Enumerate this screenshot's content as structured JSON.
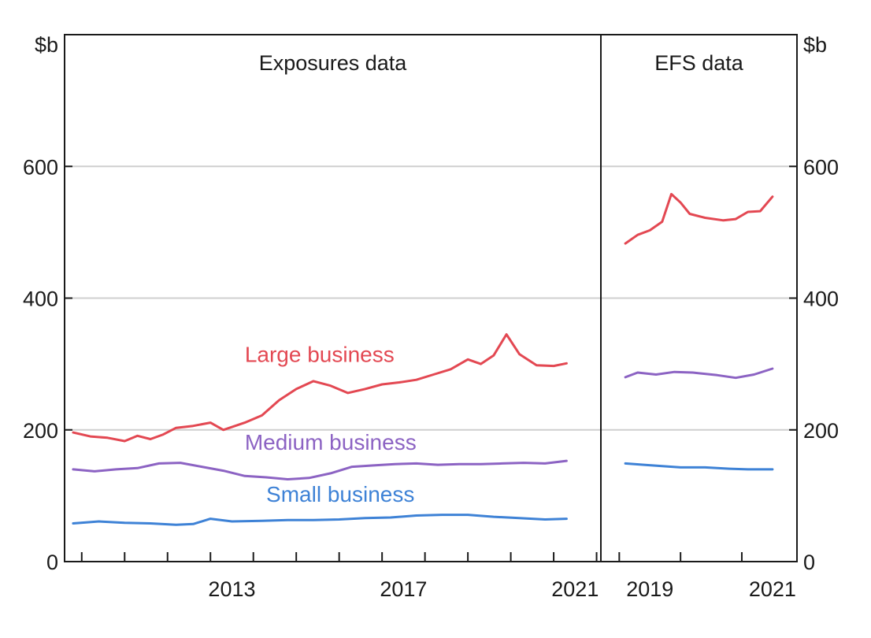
{
  "chart_data": {
    "type": "line",
    "y_unit_left": "$b",
    "y_unit_right": "$b",
    "ylim": [
      0,
      800
    ],
    "yticks": [
      0,
      200,
      400,
      600
    ],
    "grid": true,
    "panels": [
      {
        "title": "Exposures data",
        "xlim": [
          2009.6,
          2022.1
        ],
        "xtick_labels": [
          "2013",
          "2017",
          "2021"
        ],
        "xticks": [
          2013,
          2017,
          2021
        ],
        "minor_xticks": [
          2010,
          2011,
          2012,
          2013,
          2014,
          2015,
          2016,
          2017,
          2018,
          2019,
          2020,
          2021,
          2022
        ],
        "series": [
          {
            "name": "Large business",
            "color": "#e34852",
            "x": [
              2009.8,
              2010.2,
              2010.6,
              2011.0,
              2011.3,
              2011.6,
              2011.9,
              2012.2,
              2012.6,
              2013.0,
              2013.3,
              2013.8,
              2014.2,
              2014.6,
              2015.0,
              2015.4,
              2015.8,
              2016.2,
              2016.6,
              2017.0,
              2017.4,
              2017.8,
              2018.2,
              2018.6,
              2019.0,
              2019.3,
              2019.6,
              2019.9,
              2020.2,
              2020.6,
              2021.0,
              2021.3
            ],
            "values": [
              196,
              190,
              188,
              183,
              191,
              186,
              193,
              203,
              206,
              211,
              200,
              211,
              222,
              245,
              262,
              274,
              267,
              256,
              262,
              269,
              272,
              276,
              284,
              292,
              307,
              300,
              313,
              345,
              315,
              298,
              297,
              301
            ]
          },
          {
            "name": "Medium business",
            "color": "#8c63c3",
            "x": [
              2009.8,
              2010.3,
              2010.8,
              2011.3,
              2011.8,
              2012.3,
              2012.8,
              2013.3,
              2013.8,
              2014.3,
              2014.8,
              2015.3,
              2015.8,
              2016.3,
              2016.8,
              2017.3,
              2017.8,
              2018.3,
              2018.8,
              2019.3,
              2019.8,
              2020.3,
              2020.8,
              2021.3
            ],
            "values": [
              140,
              137,
              140,
              142,
              149,
              150,
              144,
              138,
              130,
              128,
              125,
              127,
              134,
              144,
              146,
              148,
              149,
              147,
              148,
              148,
              149,
              150,
              149,
              153
            ]
          },
          {
            "name": "Small business",
            "color": "#3e82d6",
            "x": [
              2009.8,
              2010.4,
              2011.0,
              2011.6,
              2012.2,
              2012.6,
              2013.0,
              2013.5,
              2014.2,
              2014.8,
              2015.4,
              2016.0,
              2016.6,
              2017.2,
              2017.8,
              2018.4,
              2019.0,
              2019.6,
              2020.2,
              2020.8,
              2021.3
            ],
            "values": [
              58,
              61,
              59,
              58,
              56,
              57,
              65,
              61,
              62,
              63,
              63,
              64,
              66,
              67,
              70,
              71,
              71,
              68,
              66,
              64,
              65
            ]
          }
        ]
      },
      {
        "title": "EFS data",
        "xlim": [
          2018.7,
          2021.9
        ],
        "xtick_labels": [
          "2019",
          "2021"
        ],
        "xticks": [
          2019,
          2021
        ],
        "minor_xticks": [
          2019,
          2020,
          2021
        ],
        "series": [
          {
            "name": "Large business",
            "color": "#e34852",
            "x": [
              2019.1,
              2019.3,
              2019.5,
              2019.7,
              2019.85,
              2020.0,
              2020.15,
              2020.4,
              2020.7,
              2020.9,
              2021.1,
              2021.3,
              2021.5
            ],
            "values": [
              483,
              496,
              503,
              516,
              558,
              545,
              528,
              522,
              518,
              520,
              531,
              532,
              554
            ]
          },
          {
            "name": "Medium business",
            "color": "#8c63c3",
            "x": [
              2019.1,
              2019.3,
              2019.6,
              2019.9,
              2020.2,
              2020.6,
              2020.9,
              2021.2,
              2021.5
            ],
            "values": [
              280,
              287,
              284,
              288,
              287,
              283,
              279,
              284,
              293
            ]
          },
          {
            "name": "Small business",
            "color": "#3e82d6",
            "x": [
              2019.1,
              2019.4,
              2019.7,
              2020.0,
              2020.4,
              2020.8,
              2021.1,
              2021.5
            ],
            "values": [
              149,
              147,
              145,
              143,
              143,
              141,
              140,
              140
            ]
          }
        ]
      }
    ],
    "annotations": [
      {
        "text": "Large business",
        "x": 2013.8,
        "y": 303,
        "color": "#e34852"
      },
      {
        "text": "Medium business",
        "x": 2013.8,
        "y": 170,
        "color": "#8c63c3"
      },
      {
        "text": "Small business",
        "x": 2014.3,
        "y": 91,
        "color": "#3e82d6"
      }
    ]
  }
}
